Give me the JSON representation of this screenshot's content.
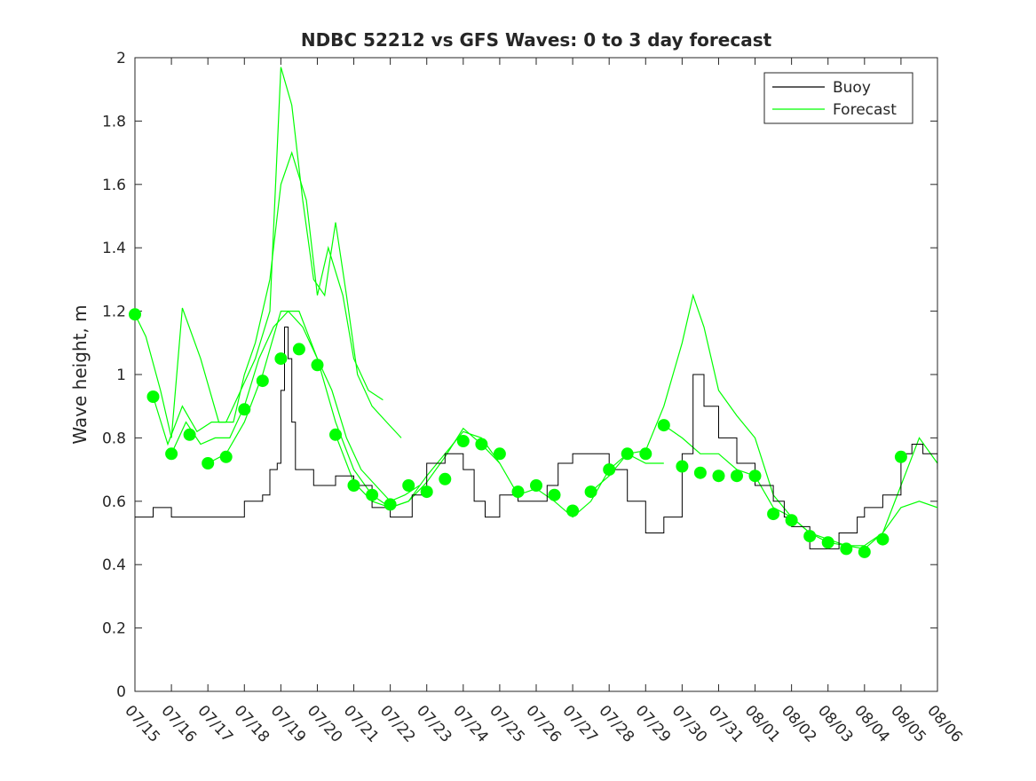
{
  "chart_data": {
    "type": "line",
    "title": "NDBC 52212 vs GFS Waves: 0 to 3 day forecast",
    "xlabel": "",
    "ylabel": "Wave height, m",
    "xlim": [
      "07/15",
      "08/06"
    ],
    "ylim": [
      0,
      2
    ],
    "grid": false,
    "legend_position": "top-right",
    "x_ticks": [
      "07/15",
      "07/16",
      "07/17",
      "07/18",
      "07/19",
      "07/20",
      "07/21",
      "07/22",
      "07/23",
      "07/24",
      "07/25",
      "07/26",
      "07/27",
      "07/28",
      "07/29",
      "07/30",
      "07/31",
      "08/01",
      "08/02",
      "08/03",
      "08/04",
      "08/05",
      "08/06"
    ],
    "y_ticks": [
      "0",
      "0.2",
      "0.4",
      "0.6",
      "0.8",
      "1",
      "1.2",
      "1.4",
      "1.6",
      "1.8",
      "2"
    ],
    "colors": {
      "buoy": "#000000",
      "forecast": "#00ff00",
      "axis": "#262626"
    },
    "series": [
      {
        "name": "Buoy",
        "x_days": [
          0,
          0.5,
          1,
          1.5,
          2,
          2.5,
          3,
          3.2,
          3.5,
          3.7,
          3.9,
          4.0,
          4.1,
          4.2,
          4.3,
          4.4,
          4.5,
          4.7,
          4.9,
          5.2,
          5.5,
          6,
          6.5,
          7,
          7.3,
          7.6,
          8,
          8.5,
          9,
          9.3,
          9.6,
          10,
          10.5,
          11,
          11.3,
          11.6,
          12,
          12.5,
          13,
          13.5,
          14,
          14.5,
          15,
          15.3,
          15.6,
          16,
          16.5,
          17,
          17.5,
          17.8,
          18,
          18.5,
          19,
          19.3,
          19.6,
          19.8,
          20,
          20.5,
          21,
          21.3,
          21.6,
          22
        ],
        "values": [
          0.55,
          0.58,
          0.55,
          0.55,
          0.55,
          0.55,
          0.6,
          0.6,
          0.62,
          0.7,
          0.72,
          0.95,
          1.15,
          1.05,
          0.85,
          0.7,
          0.7,
          0.7,
          0.65,
          0.65,
          0.68,
          0.65,
          0.58,
          0.55,
          0.55,
          0.62,
          0.72,
          0.75,
          0.7,
          0.6,
          0.55,
          0.62,
          0.6,
          0.6,
          0.65,
          0.72,
          0.75,
          0.75,
          0.7,
          0.6,
          0.5,
          0.55,
          0.75,
          1.0,
          0.9,
          0.8,
          0.72,
          0.65,
          0.6,
          0.55,
          0.52,
          0.45,
          0.45,
          0.5,
          0.5,
          0.55,
          0.58,
          0.62,
          0.75,
          0.78,
          0.75,
          0.7
        ]
      },
      {
        "name": "Forecast",
        "points": [
          [
            0,
            1.19
          ],
          [
            0.5,
            0.93
          ],
          [
            1,
            0.75
          ],
          [
            1.5,
            0.81
          ],
          [
            2,
            0.72
          ],
          [
            2.5,
            0.74
          ],
          [
            3,
            0.89
          ],
          [
            3.5,
            0.98
          ],
          [
            4,
            1.05
          ],
          [
            4.5,
            1.08
          ],
          [
            5,
            1.03
          ],
          [
            5.5,
            0.81
          ],
          [
            6,
            0.65
          ],
          [
            6.5,
            0.62
          ],
          [
            7,
            0.59
          ],
          [
            7.5,
            0.65
          ],
          [
            8,
            0.63
          ],
          [
            8.5,
            0.67
          ],
          [
            9,
            0.79
          ],
          [
            9.5,
            0.78
          ],
          [
            10,
            0.75
          ],
          [
            10.5,
            0.63
          ],
          [
            11,
            0.65
          ],
          [
            11.5,
            0.62
          ],
          [
            12,
            0.57
          ],
          [
            12.5,
            0.63
          ],
          [
            13,
            0.7
          ],
          [
            13.5,
            0.75
          ],
          [
            14,
            0.75
          ],
          [
            14.5,
            0.84
          ],
          [
            15,
            0.71
          ],
          [
            15.5,
            0.69
          ],
          [
            16,
            0.68
          ],
          [
            16.5,
            0.68
          ],
          [
            17,
            0.68
          ],
          [
            17.5,
            0.56
          ],
          [
            18,
            0.54
          ],
          [
            18.5,
            0.49
          ],
          [
            19,
            0.47
          ],
          [
            19.5,
            0.45
          ],
          [
            20,
            0.44
          ],
          [
            20.5,
            0.48
          ],
          [
            21,
            0.74
          ]
        ],
        "ensemble": [
          {
            "x_days": [
              0,
              0.3,
              0.7,
              1.0,
              1.3,
              1.8,
              2.3,
              2.7,
              3.0,
              3.3,
              3.7,
              4.0,
              4.3,
              4.7,
              5.0,
              5.3,
              5.7,
              6.0,
              6.4,
              6.8
            ],
            "values": [
              1.19,
              1.12,
              0.95,
              0.8,
              1.21,
              1.05,
              0.85,
              0.85,
              1.0,
              1.1,
              1.3,
              1.6,
              1.7,
              1.55,
              1.25,
              1.4,
              1.25,
              1.05,
              0.95,
              0.92
            ]
          },
          {
            "x_days": [
              0.5,
              0.9,
              1.3,
              1.7,
              2.1,
              2.5,
              2.9,
              3.3,
              3.7,
              4.0,
              4.3,
              4.6,
              4.9,
              5.2,
              5.5,
              5.8,
              6.1,
              6.5,
              6.9,
              7.3
            ],
            "values": [
              0.93,
              0.78,
              0.9,
              0.82,
              0.85,
              0.85,
              0.95,
              1.05,
              1.2,
              1.97,
              1.85,
              1.55,
              1.3,
              1.25,
              1.48,
              1.25,
              1.0,
              0.9,
              0.85,
              0.8
            ]
          },
          {
            "x_days": [
              1.0,
              1.4,
              1.8,
              2.2,
              2.6,
              3.0,
              3.4,
              3.8,
              4.2,
              4.6,
              5.0,
              5.4,
              5.8,
              6.2,
              6.6,
              7.0,
              7.4,
              7.8
            ],
            "values": [
              0.75,
              0.85,
              0.78,
              0.8,
              0.8,
              0.9,
              1.05,
              1.15,
              1.2,
              1.15,
              1.05,
              0.95,
              0.8,
              0.7,
              0.65,
              0.6,
              0.62,
              0.65
            ]
          },
          {
            "x_days": [
              2.0,
              2.5,
              3.0,
              3.5,
              4.0,
              4.5,
              5.0,
              5.5,
              6.0,
              6.5,
              7.0,
              7.5,
              8.0,
              8.5,
              9.0,
              9.5,
              10.0
            ],
            "values": [
              0.72,
              0.75,
              0.85,
              1.0,
              1.2,
              1.2,
              1.05,
              0.85,
              0.7,
              0.62,
              0.58,
              0.6,
              0.68,
              0.75,
              0.82,
              0.8,
              0.72
            ]
          },
          {
            "x_days": [
              5.5,
              6.0,
              6.5,
              7.0,
              7.5,
              8.0,
              8.5,
              9.0,
              9.5,
              10.0,
              10.5,
              11.0,
              11.5,
              12.0,
              12.5,
              13.0,
              13.5,
              14.0,
              14.5
            ],
            "values": [
              0.81,
              0.66,
              0.6,
              0.58,
              0.6,
              0.66,
              0.74,
              0.83,
              0.78,
              0.72,
              0.62,
              0.64,
              0.6,
              0.55,
              0.6,
              0.7,
              0.75,
              0.72,
              0.72
            ]
          },
          {
            "x_days": [
              12.5,
              13.0,
              13.5,
              14.0,
              14.5,
              15.0,
              15.3,
              15.6,
              16.0,
              16.5,
              17.0,
              17.5,
              18.0,
              18.5,
              19.0,
              19.5,
              20.0,
              20.5,
              21.0,
              21.5,
              22.0
            ],
            "values": [
              0.63,
              0.68,
              0.75,
              0.76,
              0.9,
              1.1,
              1.25,
              1.15,
              0.95,
              0.87,
              0.8,
              0.62,
              0.55,
              0.5,
              0.47,
              0.46,
              0.45,
              0.5,
              0.65,
              0.8,
              0.72
            ]
          },
          {
            "x_days": [
              14.5,
              15.0,
              15.5,
              16.0,
              16.5,
              17.0,
              17.5,
              18.0,
              18.5,
              19.0,
              19.5,
              20.0,
              20.5,
              21.0,
              21.5,
              22.0
            ],
            "values": [
              0.84,
              0.8,
              0.75,
              0.75,
              0.7,
              0.68,
              0.58,
              0.55,
              0.5,
              0.48,
              0.46,
              0.46,
              0.5,
              0.58,
              0.6,
              0.58
            ]
          }
        ]
      }
    ]
  }
}
